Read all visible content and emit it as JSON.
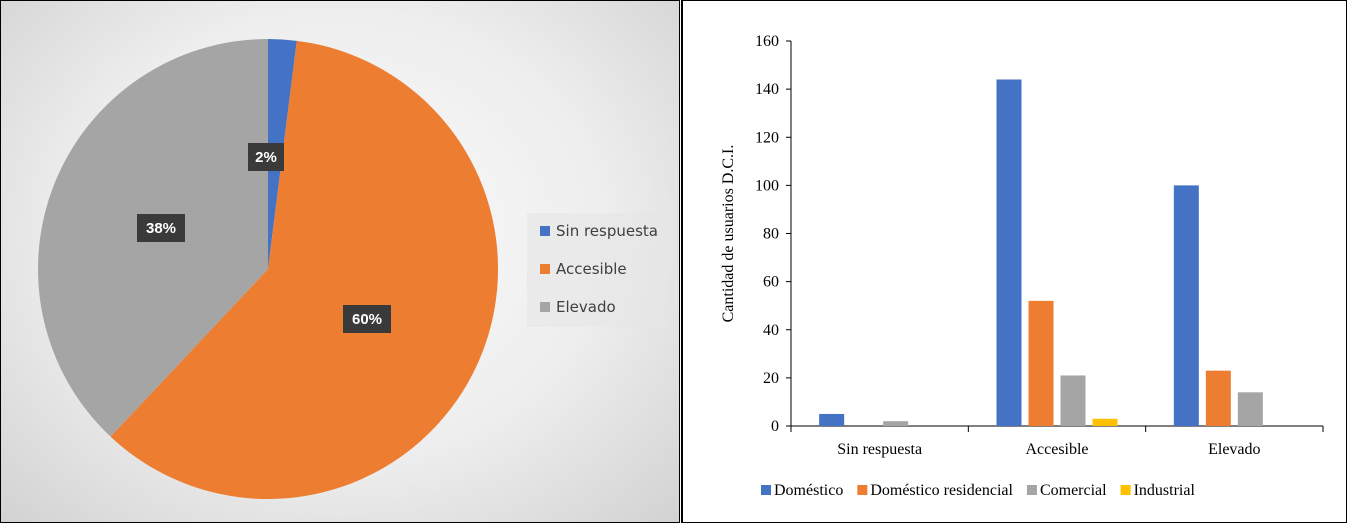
{
  "chart_data": [
    {
      "type": "pie",
      "title": "",
      "categories": [
        "Sin respuesta",
        "Accesible",
        "Elevado"
      ],
      "values": [
        2,
        60,
        38
      ],
      "labels": [
        "2%",
        "60%",
        "38%"
      ],
      "colors": [
        "#4472C4",
        "#ED7D31",
        "#A5A5A5"
      ],
      "legend": "right"
    },
    {
      "type": "bar",
      "title": "",
      "categories": [
        "Sin respuesta",
        "Accesible",
        "Elevado"
      ],
      "series": [
        {
          "name": "Doméstico",
          "color": "#4472C4",
          "values": [
            5,
            144,
            100
          ]
        },
        {
          "name": "Doméstico residencial",
          "color": "#ED7D31",
          "values": [
            0,
            52,
            23
          ]
        },
        {
          "name": "Comercial",
          "color": "#A5A5A5",
          "values": [
            2,
            21,
            14
          ]
        },
        {
          "name": "Industrial",
          "color": "#FFC000",
          "values": [
            0,
            3,
            0
          ]
        }
      ],
      "xlabel": "",
      "ylabel": "Cantidad de usuarios D.C.I.",
      "ylim": [
        0,
        160
      ],
      "yticks": [
        0,
        20,
        40,
        60,
        80,
        100,
        120,
        140,
        160
      ],
      "grid": false,
      "legend": "bottom"
    }
  ]
}
